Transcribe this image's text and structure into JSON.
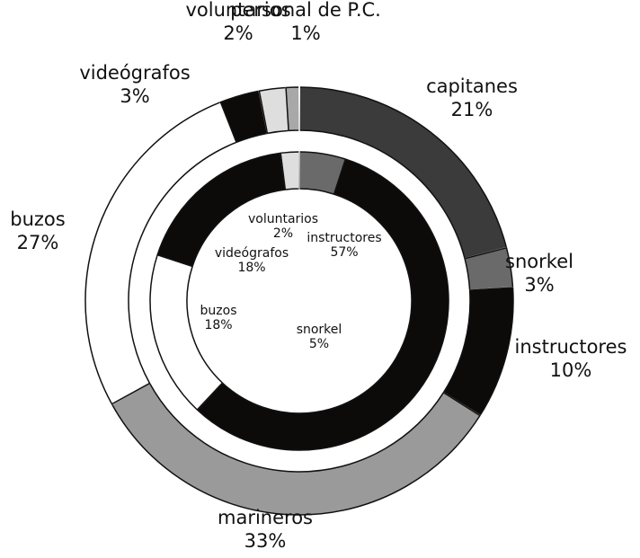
{
  "chart_data": {
    "type": "donut",
    "rings": [
      {
        "categories": [
          "capitanes",
          "snorkel",
          "instructores",
          "marineros",
          "buzos",
          "videógrafos",
          "voluntarios",
          "personal de P.C."
        ],
        "values": [
          21,
          3,
          10,
          33,
          27,
          3,
          2,
          1
        ],
        "value_labels": [
          "21%",
          "3%",
          "10%",
          "33%",
          "27%",
          "3%",
          "2%",
          "1%"
        ],
        "colors": [
          "#3b3b3b",
          "#6a6a6a",
          "#0d0a0a",
          "#9a9a9a",
          "#ffffff",
          "#0d0a0a",
          "#dedede",
          "#a8a8a8"
        ]
      },
      {
        "categories": [
          "snorkel",
          "instructores",
          "buzos",
          "videógrafos",
          "voluntarios"
        ],
        "values": [
          5,
          57,
          18,
          18,
          2
        ],
        "value_labels": [
          "5%",
          "57%",
          "18%",
          "18%",
          "2%"
        ],
        "colors": [
          "#6a6a6a",
          "#0d0a0a",
          "#ffffff",
          "#0d0a0a",
          "#dedede"
        ]
      }
    ]
  }
}
